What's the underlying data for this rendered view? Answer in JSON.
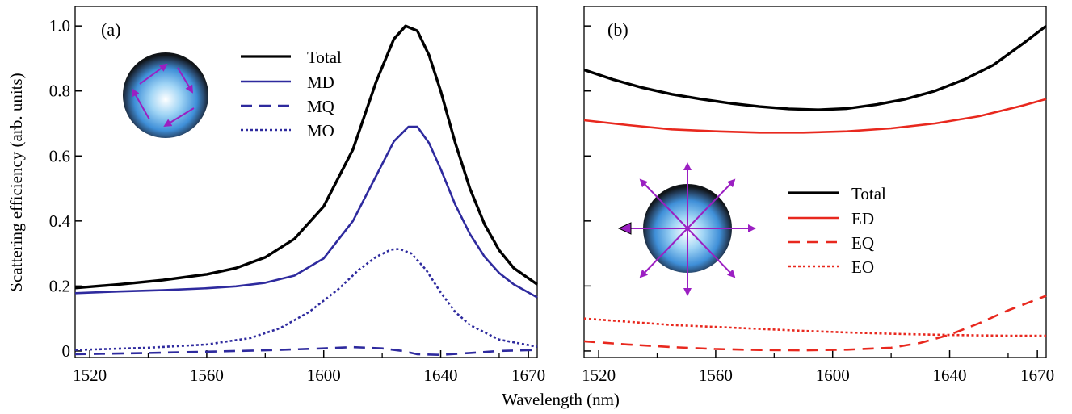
{
  "chart_data": [
    {
      "panel_label": "(a)",
      "type": "line",
      "xlabel": "Wavelength (nm)",
      "ylabel": "Scattering efficiency (arb. units)",
      "xlim": [
        1515,
        1673
      ],
      "ylim": [
        -0.02,
        1.06
      ],
      "x_ticks": [
        1520,
        1560,
        1600,
        1640,
        1670
      ],
      "y_ticks": [
        0,
        0.2,
        0.4,
        0.6,
        0.8,
        1.0
      ],
      "y_tick_labels": [
        "0",
        "0.2",
        "0.4",
        "0.6",
        "0.8",
        "1.0"
      ],
      "legend_position": "top-center",
      "inset_icon": "sphere-circulating-arrows-icon",
      "series": [
        {
          "name": "Total",
          "color": "#000000",
          "style": "solid",
          "points": [
            [
              1515,
              0.194
            ],
            [
              1530,
              0.205
            ],
            [
              1545,
              0.218
            ],
            [
              1560,
              0.236
            ],
            [
              1570,
              0.255
            ],
            [
              1580,
              0.288
            ],
            [
              1590,
              0.345
            ],
            [
              1600,
              0.445
            ],
            [
              1610,
              0.62
            ],
            [
              1618,
              0.83
            ],
            [
              1624,
              0.96
            ],
            [
              1628,
              1.0
            ],
            [
              1632,
              0.985
            ],
            [
              1636,
              0.91
            ],
            [
              1640,
              0.8
            ],
            [
              1645,
              0.64
            ],
            [
              1650,
              0.5
            ],
            [
              1655,
              0.39
            ],
            [
              1660,
              0.31
            ],
            [
              1665,
              0.255
            ],
            [
              1673,
              0.205
            ]
          ]
        },
        {
          "name": "MD",
          "color": "#2e2a9e",
          "style": "solid",
          "points": [
            [
              1515,
              0.178
            ],
            [
              1530,
              0.183
            ],
            [
              1545,
              0.187
            ],
            [
              1560,
              0.193
            ],
            [
              1570,
              0.199
            ],
            [
              1580,
              0.21
            ],
            [
              1590,
              0.232
            ],
            [
              1600,
              0.285
            ],
            [
              1610,
              0.4
            ],
            [
              1618,
              0.54
            ],
            [
              1624,
              0.645
            ],
            [
              1629,
              0.69
            ],
            [
              1632,
              0.69
            ],
            [
              1636,
              0.64
            ],
            [
              1640,
              0.56
            ],
            [
              1645,
              0.45
            ],
            [
              1650,
              0.36
            ],
            [
              1655,
              0.29
            ],
            [
              1660,
              0.24
            ],
            [
              1665,
              0.205
            ],
            [
              1673,
              0.165
            ]
          ]
        },
        {
          "name": "MQ",
          "color": "#2e2a9e",
          "style": "dashed",
          "points": [
            [
              1515,
              -0.01
            ],
            [
              1540,
              -0.006
            ],
            [
              1560,
              -0.002
            ],
            [
              1580,
              0.002
            ],
            [
              1600,
              0.008
            ],
            [
              1610,
              0.012
            ],
            [
              1620,
              0.008
            ],
            [
              1627,
              0.0
            ],
            [
              1632,
              -0.01
            ],
            [
              1640,
              -0.012
            ],
            [
              1650,
              -0.006
            ],
            [
              1660,
              0.0
            ],
            [
              1673,
              0.003
            ]
          ]
        },
        {
          "name": "MO",
          "color": "#2e2a9e",
          "style": "dotted",
          "points": [
            [
              1515,
              0.003
            ],
            [
              1540,
              0.01
            ],
            [
              1560,
              0.02
            ],
            [
              1575,
              0.04
            ],
            [
              1585,
              0.07
            ],
            [
              1595,
              0.12
            ],
            [
              1605,
              0.19
            ],
            [
              1612,
              0.25
            ],
            [
              1618,
              0.29
            ],
            [
              1623,
              0.312
            ],
            [
              1626,
              0.314
            ],
            [
              1630,
              0.3
            ],
            [
              1635,
              0.25
            ],
            [
              1640,
              0.18
            ],
            [
              1645,
              0.12
            ],
            [
              1650,
              0.08
            ],
            [
              1660,
              0.035
            ],
            [
              1673,
              0.013
            ]
          ]
        }
      ]
    },
    {
      "panel_label": "(b)",
      "type": "line",
      "xlabel": "",
      "ylabel": "",
      "xlim": [
        1515,
        1673
      ],
      "ylim": [
        -0.02,
        1.06
      ],
      "x_ticks": [
        1520,
        1560,
        1600,
        1640,
        1670
      ],
      "y_ticks": [
        0,
        0.2,
        0.4,
        0.6,
        0.8,
        1.0
      ],
      "y_tick_labels": [
        "",
        "",
        "",
        "",
        "",
        ""
      ],
      "legend_position": "center-right",
      "inset_icon": "sphere-radiating-arrows-icon",
      "series": [
        {
          "name": "Total",
          "color": "#000000",
          "style": "solid",
          "points": [
            [
              1515,
              0.865
            ],
            [
              1525,
              0.835
            ],
            [
              1535,
              0.81
            ],
            [
              1545,
              0.79
            ],
            [
              1555,
              0.775
            ],
            [
              1565,
              0.762
            ],
            [
              1575,
              0.752
            ],
            [
              1585,
              0.745
            ],
            [
              1595,
              0.742
            ],
            [
              1605,
              0.746
            ],
            [
              1615,
              0.758
            ],
            [
              1625,
              0.775
            ],
            [
              1635,
              0.8
            ],
            [
              1645,
              0.835
            ],
            [
              1655,
              0.88
            ],
            [
              1665,
              0.945
            ],
            [
              1673,
              1.0
            ]
          ]
        },
        {
          "name": "ED",
          "color": "#e8281e",
          "style": "solid",
          "points": [
            [
              1515,
              0.71
            ],
            [
              1530,
              0.695
            ],
            [
              1545,
              0.682
            ],
            [
              1560,
              0.676
            ],
            [
              1575,
              0.672
            ],
            [
              1590,
              0.672
            ],
            [
              1605,
              0.676
            ],
            [
              1620,
              0.685
            ],
            [
              1635,
              0.7
            ],
            [
              1650,
              0.722
            ],
            [
              1665,
              0.755
            ],
            [
              1673,
              0.775
            ]
          ]
        },
        {
          "name": "EQ",
          "color": "#e8281e",
          "style": "dashed",
          "points": [
            [
              1515,
              0.03
            ],
            [
              1530,
              0.02
            ],
            [
              1545,
              0.012
            ],
            [
              1560,
              0.006
            ],
            [
              1575,
              0.003
            ],
            [
              1590,
              0.002
            ],
            [
              1605,
              0.004
            ],
            [
              1620,
              0.01
            ],
            [
              1630,
              0.025
            ],
            [
              1640,
              0.05
            ],
            [
              1650,
              0.085
            ],
            [
              1660,
              0.125
            ],
            [
              1673,
              0.17
            ]
          ]
        },
        {
          "name": "EO",
          "color": "#e8281e",
          "style": "dotted",
          "points": [
            [
              1515,
              0.1
            ],
            [
              1530,
              0.09
            ],
            [
              1545,
              0.08
            ],
            [
              1560,
              0.074
            ],
            [
              1575,
              0.068
            ],
            [
              1590,
              0.062
            ],
            [
              1605,
              0.057
            ],
            [
              1620,
              0.053
            ],
            [
              1635,
              0.05
            ],
            [
              1650,
              0.048
            ],
            [
              1660,
              0.047
            ],
            [
              1673,
              0.047
            ]
          ]
        }
      ]
    }
  ]
}
